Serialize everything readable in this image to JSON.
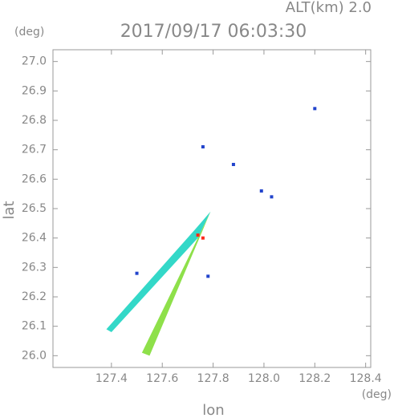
{
  "chart_data": {
    "type": "scatter",
    "title": "2017/09/17 06:03:30",
    "subtitle": "ALT(km) 2.0",
    "x_label": "lon",
    "y_label": "lat",
    "x_unit": "(deg)",
    "y_unit": "(deg)",
    "xlim": [
      127.17,
      128.42
    ],
    "ylim": [
      25.96,
      27.04
    ],
    "xticks": [
      127.4,
      127.6,
      127.8,
      {
        "value": 128,
        "label": "128.0"
      },
      128.2,
      128.4
    ],
    "yticks": [
      {
        "value": 26,
        "label": "26.0"
      },
      26.1,
      26.2,
      26.3,
      26.4,
      26.5,
      26.6,
      26.7,
      26.8,
      26.9,
      {
        "value": 27,
        "label": "27.0"
      }
    ],
    "series": [
      {
        "color": "#33d8c8",
        "x": [
          127.79,
          127.73,
          127.38,
          127.4,
          127.74
        ],
        "y": [
          26.49,
          26.43,
          26.09,
          26.08,
          26.4
        ],
        "shape": "polygon"
      },
      {
        "color": "#8ee04a",
        "x": [
          127.79,
          127.74,
          127.52,
          127.55
        ],
        "y": [
          26.49,
          26.4,
          26.01,
          26.0
        ],
        "shape": "polygon"
      },
      {
        "color": "#ff2a1a",
        "x": [
          127.74,
          127.76
        ],
        "y": [
          26.41,
          26.4
        ],
        "shape": "points"
      },
      {
        "color": "#2244cc",
        "x": [
          127.76,
          127.88,
          127.99,
          128.03,
          128.2,
          127.5,
          127.78
        ],
        "y": [
          26.71,
          26.65,
          26.56,
          26.54,
          26.84,
          26.28,
          26.27
        ],
        "shape": "points"
      }
    ]
  }
}
